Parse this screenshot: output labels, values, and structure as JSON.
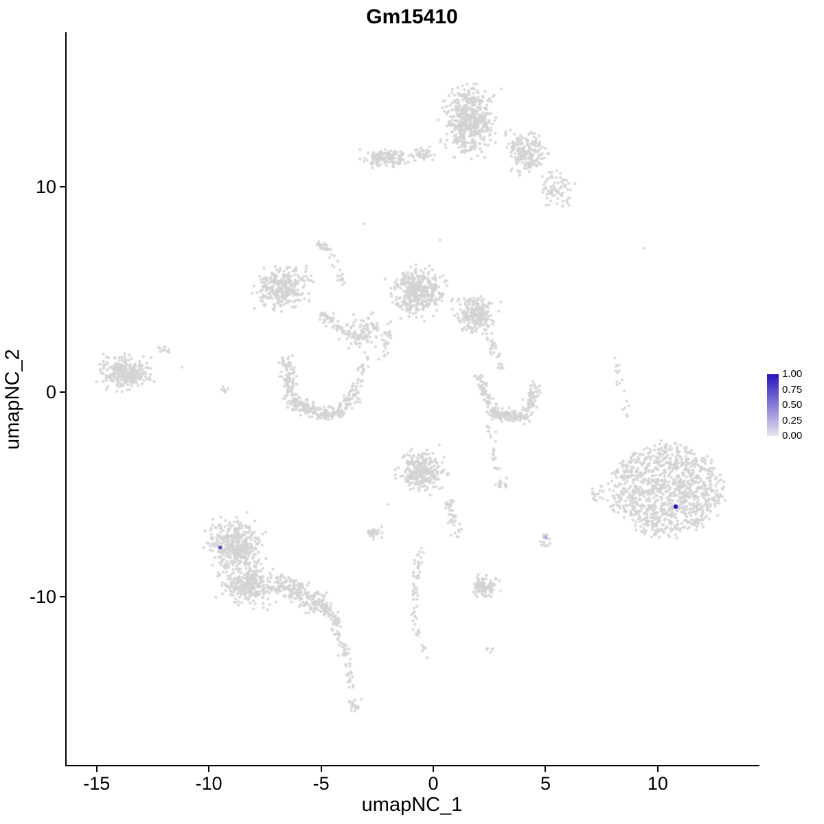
{
  "title": "Gm15410",
  "axes": {
    "x_label": "umapNC_1",
    "y_label": "umapNC_2"
  },
  "legend": {
    "ticks": [
      "1.00",
      "0.75",
      "0.50",
      "0.25",
      "0.00"
    ],
    "high_color": "#2815BE",
    "low_color": "#E6E5EE"
  },
  "chart_data": {
    "type": "scatter",
    "title": "Gm15410",
    "xlabel": "umapNC_1",
    "ylabel": "umapNC_2",
    "xlim": [
      -16.4,
      14.5
    ],
    "ylim": [
      -18.24,
      17.54
    ],
    "x_ticks": [
      -15,
      -10,
      -5,
      0,
      5,
      10
    ],
    "y_ticks": [
      10,
      0,
      -10
    ],
    "grid": false,
    "legend_position": "right",
    "color_scale": {
      "low": "#E6E5EE",
      "high": "#2815BE",
      "domain": [
        0,
        1
      ]
    },
    "point_color": "#D3D3D3",
    "point_radius_px": 2.1,
    "seed": 42,
    "clusters": [
      {
        "cx": 1.6,
        "cy": 13.2,
        "rx": 1.5,
        "ry": 2.2,
        "n": 520
      },
      {
        "cx": 4.1,
        "cy": 11.7,
        "rx": 1.2,
        "ry": 1.5,
        "n": 200
      },
      {
        "cx": 5.5,
        "cy": 9.9,
        "rx": 1.0,
        "ry": 1.2,
        "n": 70
      },
      {
        "cx": -2.2,
        "cy": 11.4,
        "rx": 1.3,
        "ry": 0.6,
        "n": 130
      },
      {
        "cx": -0.4,
        "cy": 11.6,
        "rx": 1.0,
        "ry": 0.5,
        "n": 40
      },
      {
        "cx": -6.7,
        "cy": 5.1,
        "rx": 1.5,
        "ry": 1.5,
        "n": 300
      },
      {
        "cx": -4.9,
        "cy": 7.1,
        "rx": 0.5,
        "ry": 0.35,
        "n": 25
      },
      {
        "cx": -0.7,
        "cy": 4.9,
        "rx": 1.5,
        "ry": 1.6,
        "n": 380
      },
      {
        "cx": 1.9,
        "cy": 3.7,
        "rx": 1.2,
        "ry": 1.2,
        "n": 220
      },
      {
        "cx": -3.0,
        "cy": 2.9,
        "rx": 1.1,
        "ry": 1.1,
        "n": 70
      },
      {
        "cx": -13.7,
        "cy": 0.9,
        "rx": 1.5,
        "ry": 1.1,
        "n": 270
      },
      {
        "cx": -12.0,
        "cy": 2.0,
        "rx": 0.5,
        "ry": 0.4,
        "n": 12
      },
      {
        "cx": -9.1,
        "cy": 0.1,
        "rx": 0.5,
        "ry": 0.4,
        "n": 7
      },
      {
        "cx": -0.5,
        "cy": -3.9,
        "rx": 1.3,
        "ry": 1.4,
        "n": 280
      },
      {
        "cx": -2.6,
        "cy": -6.9,
        "rx": 0.5,
        "ry": 0.4,
        "n": 28
      },
      {
        "cx": 3.0,
        "cy": -4.5,
        "rx": 0.5,
        "ry": 0.4,
        "n": 14
      },
      {
        "cx": -8.8,
        "cy": -7.5,
        "rx": 1.7,
        "ry": 1.7,
        "n": 380
      },
      {
        "cx": -8.2,
        "cy": -9.4,
        "rx": 1.7,
        "ry": 1.4,
        "n": 320
      },
      {
        "cx": 10.4,
        "cy": -4.8,
        "rx": 2.4,
        "ry": 2.2,
        "n": 950,
        "dist": "disc"
      },
      {
        "cx": 10.4,
        "cy": -4.8,
        "rx": 2.9,
        "ry": 2.7,
        "n": 90
      },
      {
        "cx": 7.3,
        "cy": -5.0,
        "rx": 0.5,
        "ry": 0.7,
        "n": 16
      },
      {
        "cx": 2.3,
        "cy": -9.5,
        "rx": 0.85,
        "ry": 0.65,
        "n": 95
      },
      {
        "cx": 5.0,
        "cy": -7.3,
        "rx": 0.35,
        "ry": 0.45,
        "n": 14
      },
      {
        "cx": -3.5,
        "cy": -15.3,
        "rx": 0.4,
        "ry": 0.5,
        "n": 18
      },
      {
        "cx": 2.5,
        "cy": -12.5,
        "rx": 0.3,
        "ry": 0.3,
        "n": 6
      }
    ],
    "arms": [
      {
        "x1": -6.6,
        "y1": 1.6,
        "x2": -6.2,
        "y2": -0.6,
        "w": 0.5,
        "n": 110
      },
      {
        "x1": -6.2,
        "y1": -0.6,
        "x2": -4.5,
        "y2": -1.2,
        "w": 0.5,
        "n": 130
      },
      {
        "x1": -4.5,
        "y1": -1.2,
        "x2": -3.5,
        "y2": -0.1,
        "w": 0.45,
        "n": 80
      },
      {
        "x1": -3.6,
        "y1": 0.0,
        "x2": -2.9,
        "y2": 1.9,
        "w": 0.35,
        "n": 30
      },
      {
        "x1": -5.2,
        "y1": 3.9,
        "x2": -3.3,
        "y2": 2.5,
        "w": 0.5,
        "n": 80
      },
      {
        "x1": -4.6,
        "y1": 6.6,
        "x2": -4.0,
        "y2": 5.3,
        "w": 0.3,
        "n": 18
      },
      {
        "x1": 2.0,
        "y1": 0.7,
        "x2": 2.7,
        "y2": -1.1,
        "w": 0.4,
        "n": 70
      },
      {
        "x1": 2.7,
        "y1": -1.1,
        "x2": 4.1,
        "y2": -1.2,
        "w": 0.45,
        "n": 110
      },
      {
        "x1": 4.1,
        "y1": -1.2,
        "x2": 4.6,
        "y2": 0.4,
        "w": 0.4,
        "n": 60
      },
      {
        "x1": 2.5,
        "y1": -1.8,
        "x2": 2.9,
        "y2": -3.9,
        "w": 0.3,
        "n": 22
      },
      {
        "x1": 2.4,
        "y1": 2.8,
        "x2": 3.1,
        "y2": 1.0,
        "w": 0.35,
        "n": 30
      },
      {
        "x1": -1.9,
        "y1": 3.3,
        "x2": -2.3,
        "y2": 1.5,
        "w": 0.3,
        "n": 25
      },
      {
        "x1": 0.6,
        "y1": -5.3,
        "x2": 1.1,
        "y2": -7.0,
        "w": 0.35,
        "n": 40
      },
      {
        "x1": -6.9,
        "y1": -9.2,
        "x2": -4.9,
        "y2": -10.5,
        "w": 0.7,
        "n": 200
      },
      {
        "x1": -4.9,
        "y1": -10.5,
        "x2": -4.2,
        "y2": -11.3,
        "w": 0.4,
        "n": 50
      },
      {
        "x1": -4.4,
        "y1": -11.5,
        "x2": -3.8,
        "y2": -13.0,
        "w": 0.3,
        "n": 30
      },
      {
        "x1": -3.8,
        "y1": -13.2,
        "x2": -3.6,
        "y2": -14.6,
        "w": 0.22,
        "n": 18
      },
      {
        "x1": -0.6,
        "y1": -7.6,
        "x2": -0.9,
        "y2": -10.5,
        "w": 0.3,
        "n": 40
      },
      {
        "x1": -0.9,
        "y1": -10.7,
        "x2": -0.4,
        "y2": -12.9,
        "w": 0.25,
        "n": 20
      },
      {
        "x1": 8.1,
        "y1": 1.8,
        "x2": 8.6,
        "y2": -1.2,
        "w": 0.25,
        "n": 18
      }
    ],
    "outliers": [
      [
        -3.1,
        8.2
      ],
      [
        9.4,
        7.0
      ],
      [
        0.3,
        7.4
      ],
      [
        -11.2,
        1.2
      ],
      [
        -2.0,
        -5.5
      ]
    ],
    "highlighted_points": [
      {
        "x": -9.5,
        "y": -7.6,
        "value": 0.6,
        "color": "#5A48C0",
        "radius_px": 2.8
      },
      {
        "x": 5.0,
        "y": -7.1,
        "value": 0.3,
        "color": "#B4A7DE",
        "radius_px": 2.6
      },
      {
        "x": 10.8,
        "y": -5.6,
        "value": 1.0,
        "color": "#2313B5",
        "radius_px": 3.2
      }
    ]
  }
}
